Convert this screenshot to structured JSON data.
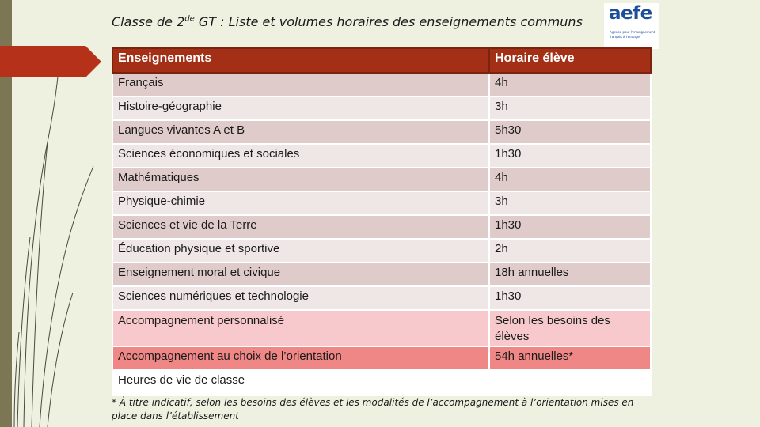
{
  "slide": {
    "title_main": "Classe de 2",
    "title_sup": "de",
    "title_rest": " GT : Liste et volumes horaires des enseignements communs"
  },
  "logo": {
    "word": "aefe",
    "subtitle": "Agence pour l’enseignement français à l’étranger"
  },
  "table": {
    "headers": [
      "Enseignements",
      "Horaire élève"
    ],
    "rows": [
      {
        "subject": "Français",
        "hours": "4h"
      },
      {
        "subject": "Histoire-géographie",
        "hours": "3h"
      },
      {
        "subject": "Langues vivantes A et B",
        "hours": "5h30"
      },
      {
        "subject": "Sciences économiques et sociales",
        "hours": "1h30"
      },
      {
        "subject": "Mathématiques",
        "hours": "4h"
      },
      {
        "subject": "Physique-chimie",
        "hours": "3h"
      },
      {
        "subject": "Sciences et vie de la Terre",
        "hours": "1h30"
      },
      {
        "subject": "Éducation physique et sportive",
        "hours": "2h"
      },
      {
        "subject": "Enseignement moral et civique",
        "hours": "18h annuelles"
      },
      {
        "subject": "Sciences numériques et technologie",
        "hours": "1h30"
      },
      {
        "subject": "Accompagnement personnalisé",
        "hours": "Selon les besoins des élèves"
      },
      {
        "subject": "Accompagnement au choix de l’orientation",
        "hours": "54h annuelles*"
      },
      {
        "subject": "Heures de vie de classe",
        "hours": ""
      }
    ]
  },
  "footnote": "* À titre indicatif, selon les besoins des élèves et les modalités de l’accompagnement à l’orientation mises en place dans l’établissement",
  "colors": {
    "header_bg": "#a32f16",
    "row_dark": "#e0cbcb",
    "row_light": "#efe6e6",
    "row_pink": "#f8c9cc",
    "row_salmon": "#f08787",
    "sidebar": "#7d7654",
    "logo_blue": "#1d4e9a"
  }
}
